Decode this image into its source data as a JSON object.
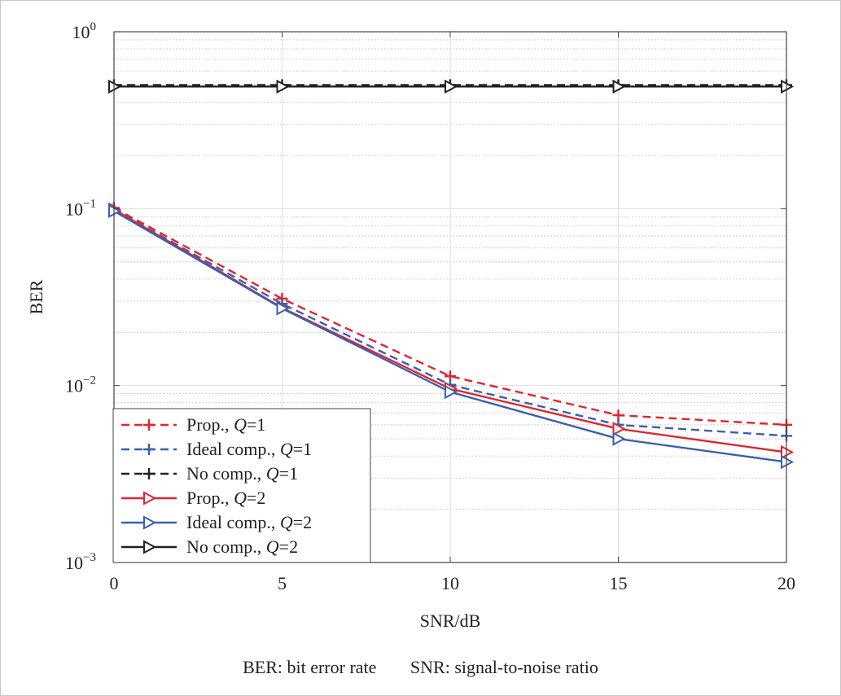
{
  "chart_data": {
    "type": "line",
    "yscale": "log",
    "xlabel": "SNR/dB",
    "ylabel": "BER",
    "xlim": [
      0,
      20
    ],
    "ylim": [
      0.001,
      1
    ],
    "x_ticks": [
      0,
      5,
      10,
      15,
      20
    ],
    "y_ticks": [
      {
        "value": 1,
        "base": "10",
        "exp": "0"
      },
      {
        "value": 0.1,
        "base": "10",
        "exp": "−1"
      },
      {
        "value": 0.01,
        "base": "10",
        "exp": "−2"
      },
      {
        "value": 0.001,
        "base": "10",
        "exp": "−3"
      }
    ],
    "grid": true,
    "legend_position": "bottom-left",
    "x": [
      0,
      5,
      10,
      15,
      20
    ],
    "series": [
      {
        "legend_prefix": "Prop., ",
        "legend_q": "Q",
        "legend_suffix": "=1",
        "color": "#e0252f",
        "dash": "dashed",
        "marker": "plus",
        "values": [
          0.101,
          0.031,
          0.0113,
          0.0068,
          0.006
        ]
      },
      {
        "legend_prefix": "Ideal comp., ",
        "legend_q": "Q",
        "legend_suffix": "=1",
        "color": "#3a5fb0",
        "dash": "dashed",
        "marker": "plus",
        "values": [
          0.099,
          0.029,
          0.0101,
          0.006,
          0.0052
        ]
      },
      {
        "legend_prefix": "No comp., ",
        "legend_q": "Q",
        "legend_suffix": "=1",
        "color": "#222222",
        "dash": "dashed",
        "marker": "plus",
        "values": [
          0.5,
          0.5,
          0.5,
          0.5,
          0.5
        ]
      },
      {
        "legend_prefix": "Prop., ",
        "legend_q": "Q",
        "legend_suffix": "=2",
        "color": "#e0252f",
        "dash": "solid",
        "marker": "triangle-right",
        "values": [
          0.099,
          0.0275,
          0.0096,
          0.0057,
          0.0042
        ]
      },
      {
        "legend_prefix": "Ideal comp., ",
        "legend_q": "Q",
        "legend_suffix": "=2",
        "color": "#3a5fb0",
        "dash": "solid",
        "marker": "triangle-right",
        "values": [
          0.097,
          0.0273,
          0.0092,
          0.005,
          0.0037
        ]
      },
      {
        "legend_prefix": "No comp., ",
        "legend_q": "Q",
        "legend_suffix": "=2",
        "color": "#222222",
        "dash": "solid",
        "marker": "triangle-right",
        "values": [
          0.49,
          0.49,
          0.49,
          0.49,
          0.49
        ]
      }
    ]
  },
  "caption": {
    "ber": "BER: bit error rate",
    "snr": "SNR: signal-to-noise ratio"
  }
}
